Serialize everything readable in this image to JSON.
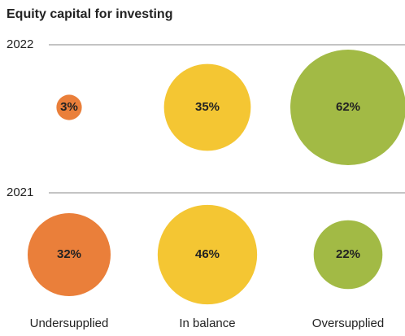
{
  "chart_data": {
    "type": "bubble",
    "title": "Equity capital for investing",
    "categories": [
      "Undersupplied",
      "In balance",
      "Oversupplied"
    ],
    "colors": [
      "#ea7f3a",
      "#f4c633",
      "#a2ba45"
    ],
    "series": [
      {
        "name": "2022",
        "values": [
          3,
          35,
          62
        ],
        "value_labels": [
          "3%",
          "35%",
          "62%"
        ]
      },
      {
        "name": "2021",
        "values": [
          32,
          46,
          22
        ],
        "value_labels": [
          "32%",
          "46%",
          "22%"
        ]
      }
    ]
  }
}
